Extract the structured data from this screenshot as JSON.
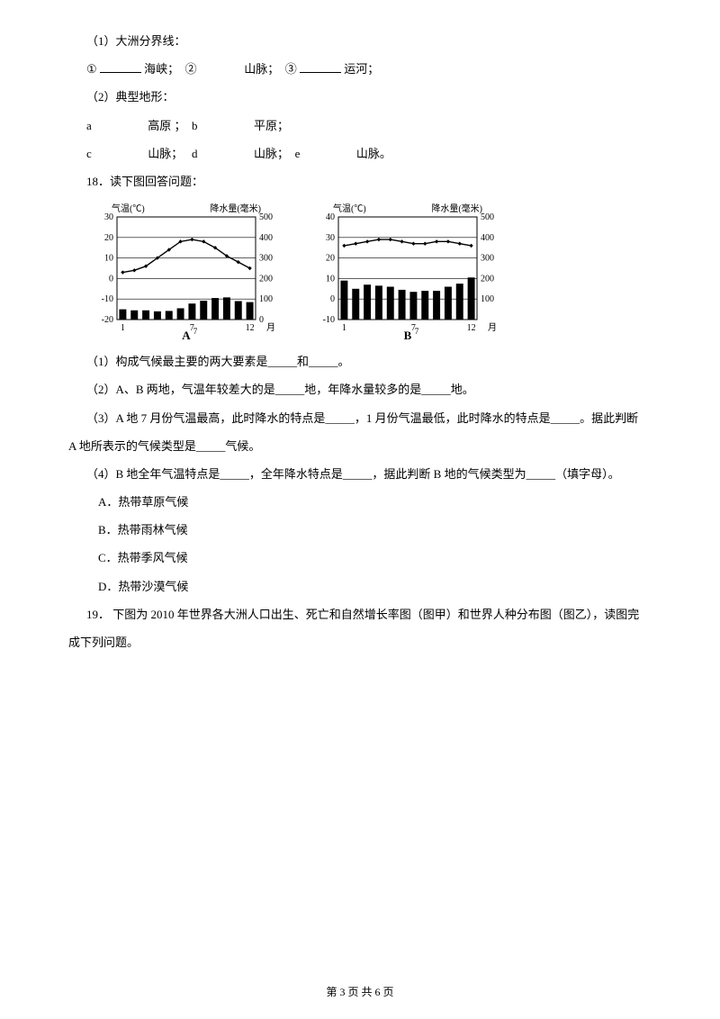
{
  "q17": {
    "part1label": "（1）大洲分界线：",
    "line2": {
      "circ1": "①",
      "strait": "海峡；",
      "circ2": "②",
      "mountain": "山脉；",
      "circ3": "③",
      "canal": "运河；"
    },
    "part2label": "（2）典型地形：",
    "a_label": "a",
    "a_txt": "高原 ；",
    "b_label": "b",
    "b_txt": "平原；",
    "c_label": "c",
    "c_txt": "山脉；",
    "d_label": "d",
    "d_txt": "山脉；",
    "e_label": "e",
    "e_txt": "山脉。"
  },
  "q18": {
    "prompt": "18．读下图回答问题：",
    "chartA": {
      "temp_label": "气温(℃)",
      "rain_label": "降水量(毫米)",
      "temp_ticks": [
        -20,
        -10,
        0,
        10,
        20,
        30
      ],
      "rain_ticks": [
        0,
        100,
        200,
        300,
        400,
        500
      ],
      "month_ticks": [
        1,
        7,
        12
      ],
      "month_label": "月",
      "letter": "A",
      "temp_data": [
        3,
        4,
        6,
        10,
        14,
        18,
        19,
        18,
        15,
        11,
        8,
        5
      ],
      "rain_data": [
        50,
        45,
        45,
        40,
        42,
        55,
        78,
        92,
        105,
        108,
        90,
        85
      ],
      "colors": {
        "axis": "#000000",
        "line": "#000000",
        "bar": "#000000",
        "bg": "#ffffff"
      }
    },
    "chartB": {
      "temp_label": "气温(℃)",
      "rain_label": "降水量(毫米)",
      "temp_ticks": [
        -10,
        0,
        10,
        20,
        30,
        40
      ],
      "rain_ticks": [
        100,
        200,
        300,
        400,
        500
      ],
      "month_ticks": [
        1,
        7,
        12
      ],
      "month_label": "月",
      "letter": "B",
      "temp_data": [
        26,
        27,
        28,
        29,
        29,
        28,
        27,
        27,
        28,
        28,
        27,
        26
      ],
      "rain_data": [
        190,
        150,
        170,
        165,
        160,
        145,
        135,
        140,
        140,
        160,
        175,
        205
      ],
      "colors": {
        "axis": "#000000",
        "line": "#000000",
        "bar": "#000000",
        "bg": "#ffffff"
      }
    },
    "sub1": "（1）构成气候最主要的两大要素是_____和_____。",
    "sub2": "（2）A、B 两地，气温年较差大的是_____地，年降水量较多的是_____地。",
    "sub3a": "（3）A 地 7 月份气温最高，此时降水的特点是_____，1 月份气温最低，此时降水的特点是_____。据此判断",
    "sub3b": "A 地所表示的气候类型是_____气候。",
    "sub4": "（4）B 地全年气温特点是_____，全年降水特点是_____，据此判断 B 地的气候类型为_____（填字母）。",
    "optA": "A．热带草原气候",
    "optB": "B．热带雨林气候",
    "optC": "C．热带季风气候",
    "optD": "D．热带沙漠气候"
  },
  "q19": {
    "prompt_a": "19． 下图为 2010 年世界各大洲人口出生、死亡和自然增长率图（图甲）和世界人种分布图（图乙），读图完",
    "prompt_b": "成下列问题。"
  },
  "footer": "第 3 页 共 6 页"
}
